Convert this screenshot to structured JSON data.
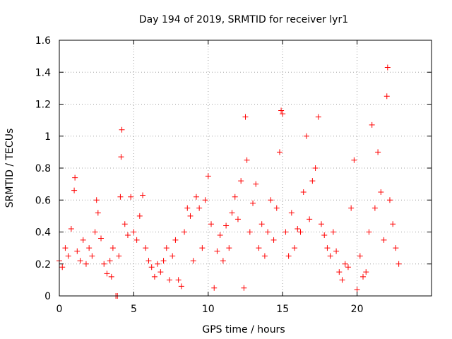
{
  "chart_data": {
    "type": "scatter",
    "title": "Day 194 of 2019, SRMTID for receiver lyr1",
    "xlabel": "GPS time / hours",
    "ylabel": "SRMTID / TECUs",
    "xlim": [
      0,
      25
    ],
    "ylim": [
      0,
      1.6
    ],
    "xticks": [
      0,
      5,
      10,
      15,
      20
    ],
    "yticks": [
      0,
      0.2,
      0.4,
      0.6,
      0.8,
      1,
      1.2,
      1.4,
      1.6
    ],
    "xtick_labels": [
      "0",
      "5",
      "10",
      "15",
      "20"
    ],
    "ytick_labels": [
      "0",
      "0.2",
      "0.4",
      "0.6",
      "0.8",
      "1",
      "1.2",
      "1.4",
      "1.6"
    ],
    "grid": true,
    "marker": "+",
    "color": "#ff0000",
    "series": [
      {
        "name": "SRMTID",
        "points": [
          [
            0.0,
            0.22
          ],
          [
            0.2,
            0.18
          ],
          [
            0.4,
            0.3
          ],
          [
            0.6,
            0.25
          ],
          [
            0.8,
            0.42
          ],
          [
            1.0,
            0.66
          ],
          [
            1.05,
            0.74
          ],
          [
            1.2,
            0.28
          ],
          [
            1.4,
            0.22
          ],
          [
            1.6,
            0.35
          ],
          [
            1.8,
            0.2
          ],
          [
            2.0,
            0.3
          ],
          [
            2.2,
            0.25
          ],
          [
            2.4,
            0.4
          ],
          [
            2.5,
            0.6
          ],
          [
            2.6,
            0.52
          ],
          [
            2.8,
            0.36
          ],
          [
            3.0,
            0.2
          ],
          [
            3.2,
            0.14
          ],
          [
            3.4,
            0.22
          ],
          [
            3.5,
            0.12
          ],
          [
            3.6,
            0.3
          ],
          [
            3.8,
            0.0
          ],
          [
            3.9,
            0.0
          ],
          [
            4.0,
            0.25
          ],
          [
            4.1,
            0.62
          ],
          [
            4.15,
            0.87
          ],
          [
            4.2,
            1.04
          ],
          [
            4.4,
            0.45
          ],
          [
            4.6,
            0.38
          ],
          [
            4.8,
            0.62
          ],
          [
            5.0,
            0.4
          ],
          [
            5.2,
            0.35
          ],
          [
            5.4,
            0.5
          ],
          [
            5.6,
            0.63
          ],
          [
            5.8,
            0.3
          ],
          [
            6.0,
            0.22
          ],
          [
            6.2,
            0.18
          ],
          [
            6.4,
            0.12
          ],
          [
            6.6,
            0.2
          ],
          [
            6.8,
            0.15
          ],
          [
            7.0,
            0.22
          ],
          [
            7.2,
            0.3
          ],
          [
            7.4,
            0.1
          ],
          [
            7.6,
            0.25
          ],
          [
            7.8,
            0.35
          ],
          [
            8.0,
            0.1
          ],
          [
            8.2,
            0.06
          ],
          [
            8.4,
            0.4
          ],
          [
            8.6,
            0.55
          ],
          [
            8.8,
            0.5
          ],
          [
            9.0,
            0.22
          ],
          [
            9.2,
            0.62
          ],
          [
            9.4,
            0.55
          ],
          [
            9.6,
            0.3
          ],
          [
            9.8,
            0.6
          ],
          [
            10.0,
            0.75
          ],
          [
            10.2,
            0.45
          ],
          [
            10.4,
            0.05
          ],
          [
            10.6,
            0.28
          ],
          [
            10.8,
            0.38
          ],
          [
            11.0,
            0.22
          ],
          [
            11.2,
            0.44
          ],
          [
            11.4,
            0.3
          ],
          [
            11.6,
            0.52
          ],
          [
            11.8,
            0.62
          ],
          [
            12.0,
            0.48
          ],
          [
            12.2,
            0.72
          ],
          [
            12.4,
            0.05
          ],
          [
            12.5,
            1.12
          ],
          [
            12.6,
            0.85
          ],
          [
            12.8,
            0.4
          ],
          [
            13.0,
            0.58
          ],
          [
            13.2,
            0.7
          ],
          [
            13.4,
            0.3
          ],
          [
            13.6,
            0.45
          ],
          [
            13.8,
            0.25
          ],
          [
            14.0,
            0.4
          ],
          [
            14.2,
            0.6
          ],
          [
            14.4,
            0.35
          ],
          [
            14.6,
            0.55
          ],
          [
            14.8,
            0.9
          ],
          [
            14.9,
            1.16
          ],
          [
            15.0,
            1.14
          ],
          [
            15.2,
            0.4
          ],
          [
            15.4,
            0.25
          ],
          [
            15.6,
            0.52
          ],
          [
            15.8,
            0.3
          ],
          [
            16.0,
            0.42
          ],
          [
            16.2,
            0.4
          ],
          [
            16.4,
            0.65
          ],
          [
            16.6,
            1.0
          ],
          [
            16.8,
            0.48
          ],
          [
            17.0,
            0.72
          ],
          [
            17.2,
            0.8
          ],
          [
            17.4,
            1.12
          ],
          [
            17.6,
            0.45
          ],
          [
            17.8,
            0.38
          ],
          [
            18.0,
            0.3
          ],
          [
            18.2,
            0.25
          ],
          [
            18.4,
            0.4
          ],
          [
            18.6,
            0.28
          ],
          [
            18.8,
            0.15
          ],
          [
            19.0,
            0.1
          ],
          [
            19.2,
            0.2
          ],
          [
            19.4,
            0.18
          ],
          [
            19.6,
            0.55
          ],
          [
            19.8,
            0.85
          ],
          [
            20.0,
            0.04
          ],
          [
            20.2,
            0.25
          ],
          [
            20.4,
            0.12
          ],
          [
            20.6,
            0.15
          ],
          [
            20.8,
            0.4
          ],
          [
            21.0,
            1.07
          ],
          [
            21.2,
            0.55
          ],
          [
            21.4,
            0.9
          ],
          [
            21.6,
            0.65
          ],
          [
            21.8,
            0.35
          ],
          [
            22.0,
            1.25
          ],
          [
            22.05,
            1.43
          ],
          [
            22.2,
            0.6
          ],
          [
            22.4,
            0.45
          ],
          [
            22.6,
            0.3
          ],
          [
            22.8,
            0.2
          ]
        ]
      }
    ]
  }
}
